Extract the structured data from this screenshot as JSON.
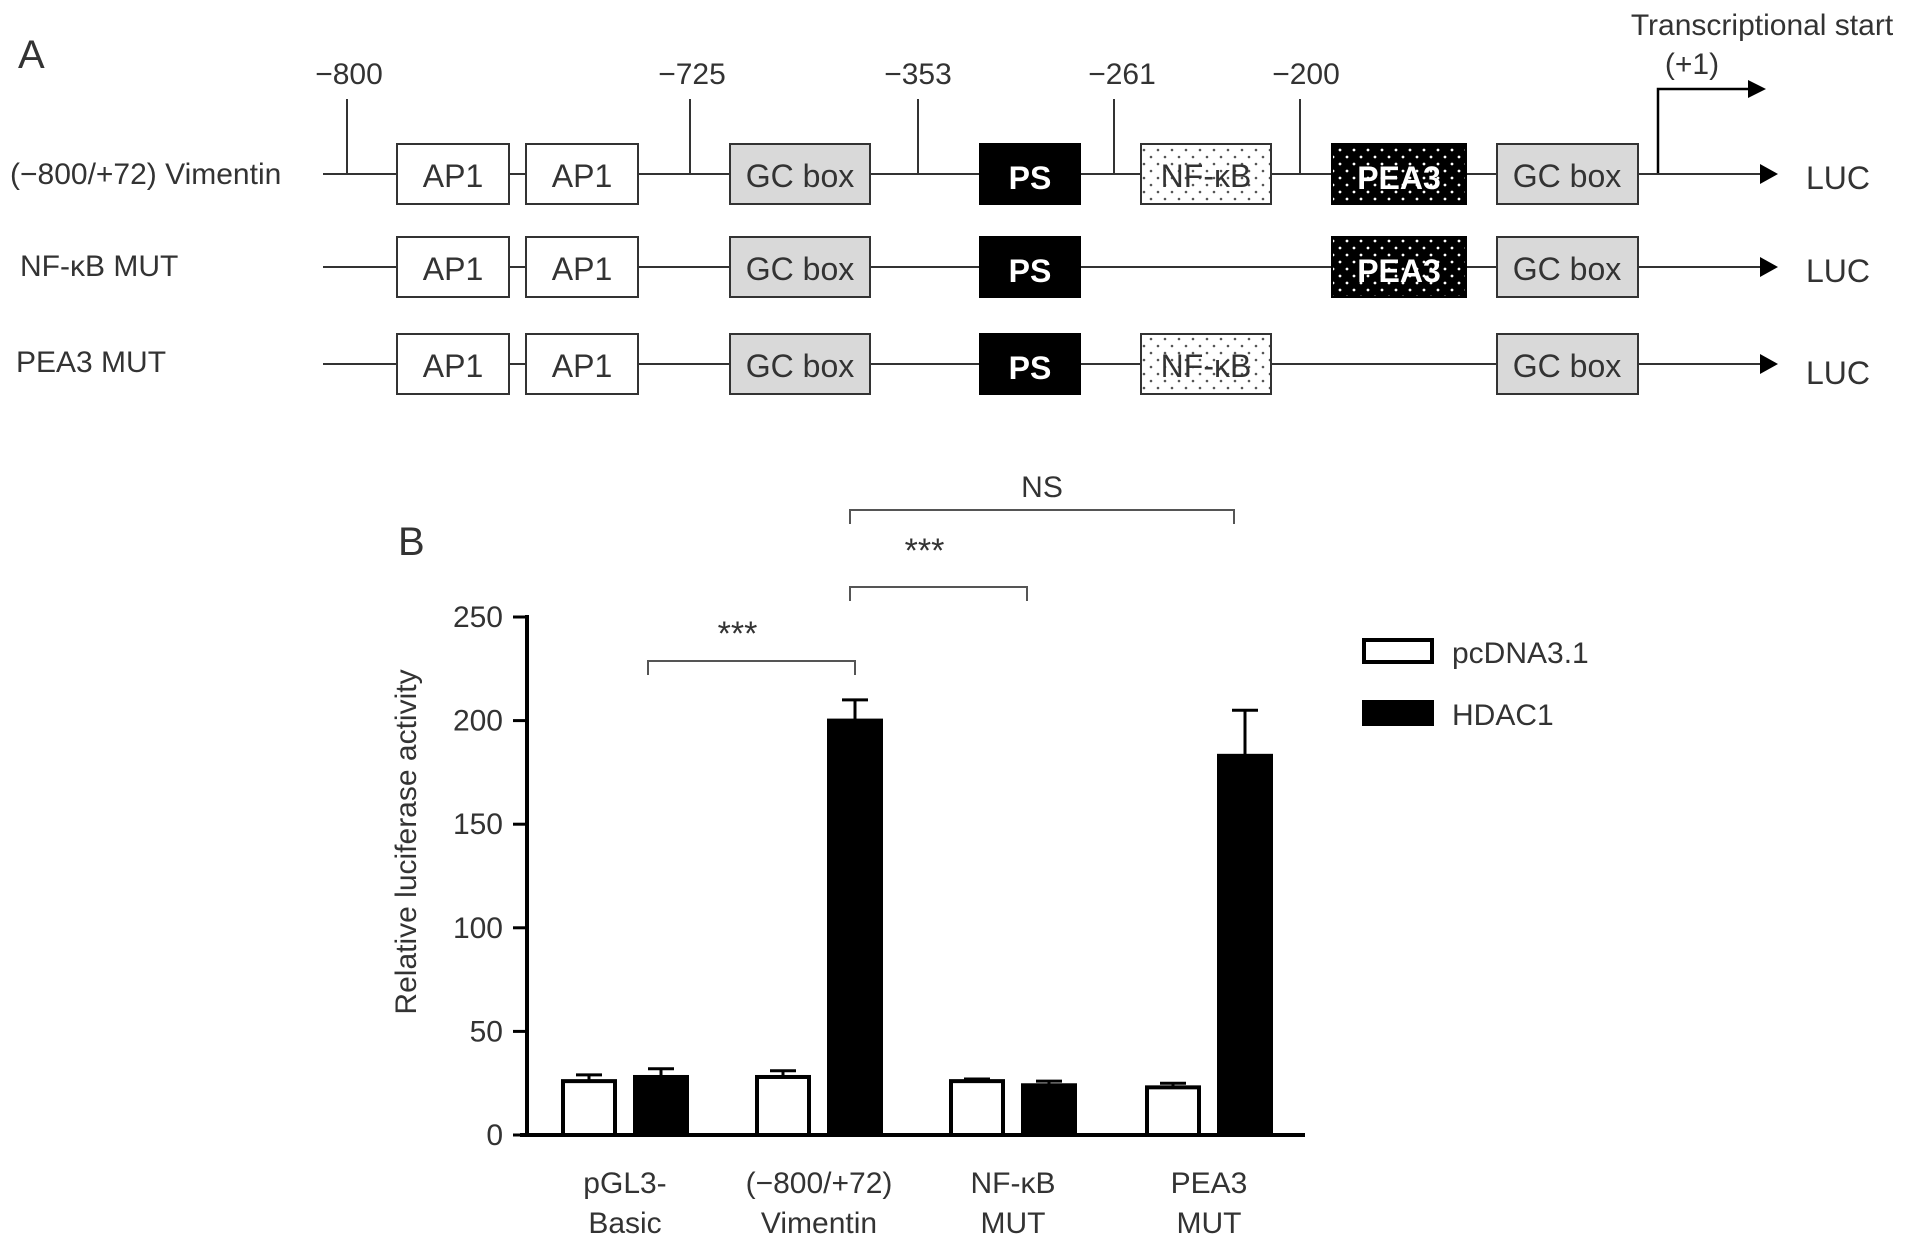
{
  "panel_a": {
    "label": "A",
    "tss_label_line1": "Transcriptional start",
    "tss_label_line2": "(+1)",
    "positions": [
      "−800",
      "−725",
      "−353",
      "−261",
      "−200"
    ],
    "constructs": [
      {
        "name": "(−800/+72) Vimentin",
        "end_label": "LUC",
        "boxes": [
          {
            "text": "AP1",
            "style": "white"
          },
          {
            "text": "AP1",
            "style": "white"
          },
          {
            "text": "GC box",
            "style": "grey"
          },
          {
            "text": "PS",
            "style": "black"
          },
          {
            "text": "NF-κB",
            "style": "dotted"
          },
          {
            "text": "PEA3",
            "style": "black-dotted"
          },
          {
            "text": "GC box",
            "style": "grey"
          }
        ]
      },
      {
        "name": "NF-κB MUT",
        "end_label": "LUC",
        "boxes": [
          {
            "text": "AP1",
            "style": "white"
          },
          {
            "text": "AP1",
            "style": "white"
          },
          {
            "text": "GC box",
            "style": "grey"
          },
          {
            "text": "PS",
            "style": "black"
          },
          {
            "text": "PEA3",
            "style": "black-dotted"
          },
          {
            "text": "GC box",
            "style": "grey"
          }
        ]
      },
      {
        "name": "PEA3 MUT",
        "end_label": "LUC",
        "boxes": [
          {
            "text": "AP1",
            "style": "white"
          },
          {
            "text": "AP1",
            "style": "white"
          },
          {
            "text": "GC box",
            "style": "grey"
          },
          {
            "text": "PS",
            "style": "black"
          },
          {
            "text": "NF-κB",
            "style": "dotted"
          },
          {
            "text": "GC box",
            "style": "grey"
          }
        ]
      }
    ]
  },
  "panel_b": {
    "label": "B"
  },
  "chart_data": {
    "type": "bar",
    "title": "",
    "ylabel": "Relative luciferase activity",
    "xlabel": "",
    "ylim": [
      0,
      250
    ],
    "yticks": [
      0,
      50,
      100,
      150,
      200,
      250
    ],
    "categories": [
      [
        "pGL3-",
        "Basic"
      ],
      [
        "(−800/+72)",
        "Vimentin"
      ],
      [
        "NF-κB",
        "MUT"
      ],
      [
        "PEA3",
        "MUT"
      ]
    ],
    "series": [
      {
        "name": "pcDNA3.1",
        "color": "#ffffff",
        "values": [
          26,
          28,
          26,
          23
        ],
        "errors": [
          3,
          3,
          1,
          2
        ]
      },
      {
        "name": "HDAC1",
        "color": "#000000",
        "values": [
          28,
          200,
          24,
          183
        ],
        "errors": [
          4,
          10,
          2,
          22
        ]
      }
    ],
    "legend_position": "top-right",
    "grid": false,
    "significance": [
      {
        "from_category": 0,
        "to_category": 1,
        "label": "***"
      },
      {
        "from_category": 1,
        "to_category": 2,
        "label": "***"
      },
      {
        "from_category": 1,
        "to_category": 3,
        "label": "NS"
      }
    ]
  }
}
